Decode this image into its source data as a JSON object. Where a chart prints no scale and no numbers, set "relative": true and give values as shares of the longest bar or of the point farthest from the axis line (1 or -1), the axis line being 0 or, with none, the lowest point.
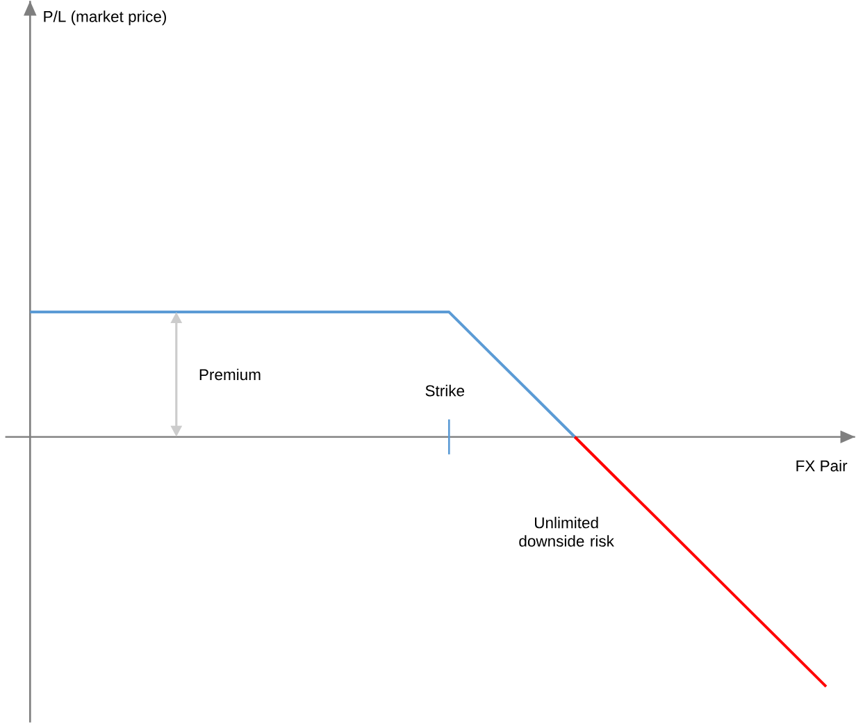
{
  "chart_data": {
    "type": "line",
    "relative": true,
    "xlabel": "FX Pair",
    "categories": [
      null,
      null,
      null,
      null,
      null,
      null,
      null,
      null,
      null,
      null,
      null,
      null,
      null,
      null,
      null,
      null,
      null,
      null,
      null,
      null
    ],
    "series": [
      {
        "color": "#5b9bd5",
        "values": [
          0.5,
          0.5,
          0.5,
          0.5,
          0.5,
          0.5,
          0.5,
          0.5,
          0.5,
          0.5,
          0.5,
          0.333,
          0.167,
          0,
          null,
          null,
          null,
          null,
          null,
          null
        ]
      },
      {
        "color": "#ff0000",
        "values": [
          null,
          null,
          null,
          null,
          null,
          null,
          null,
          null,
          null,
          null,
          null,
          null,
          null,
          0,
          -0.167,
          -0.333,
          -0.5,
          -0.667,
          -0.833,
          -1
        ]
      }
    ],
    "annotations": [
      "Premium",
      "Strike",
      "Unlimited downside risk",
      "P/L (market price)"
    ]
  }
}
